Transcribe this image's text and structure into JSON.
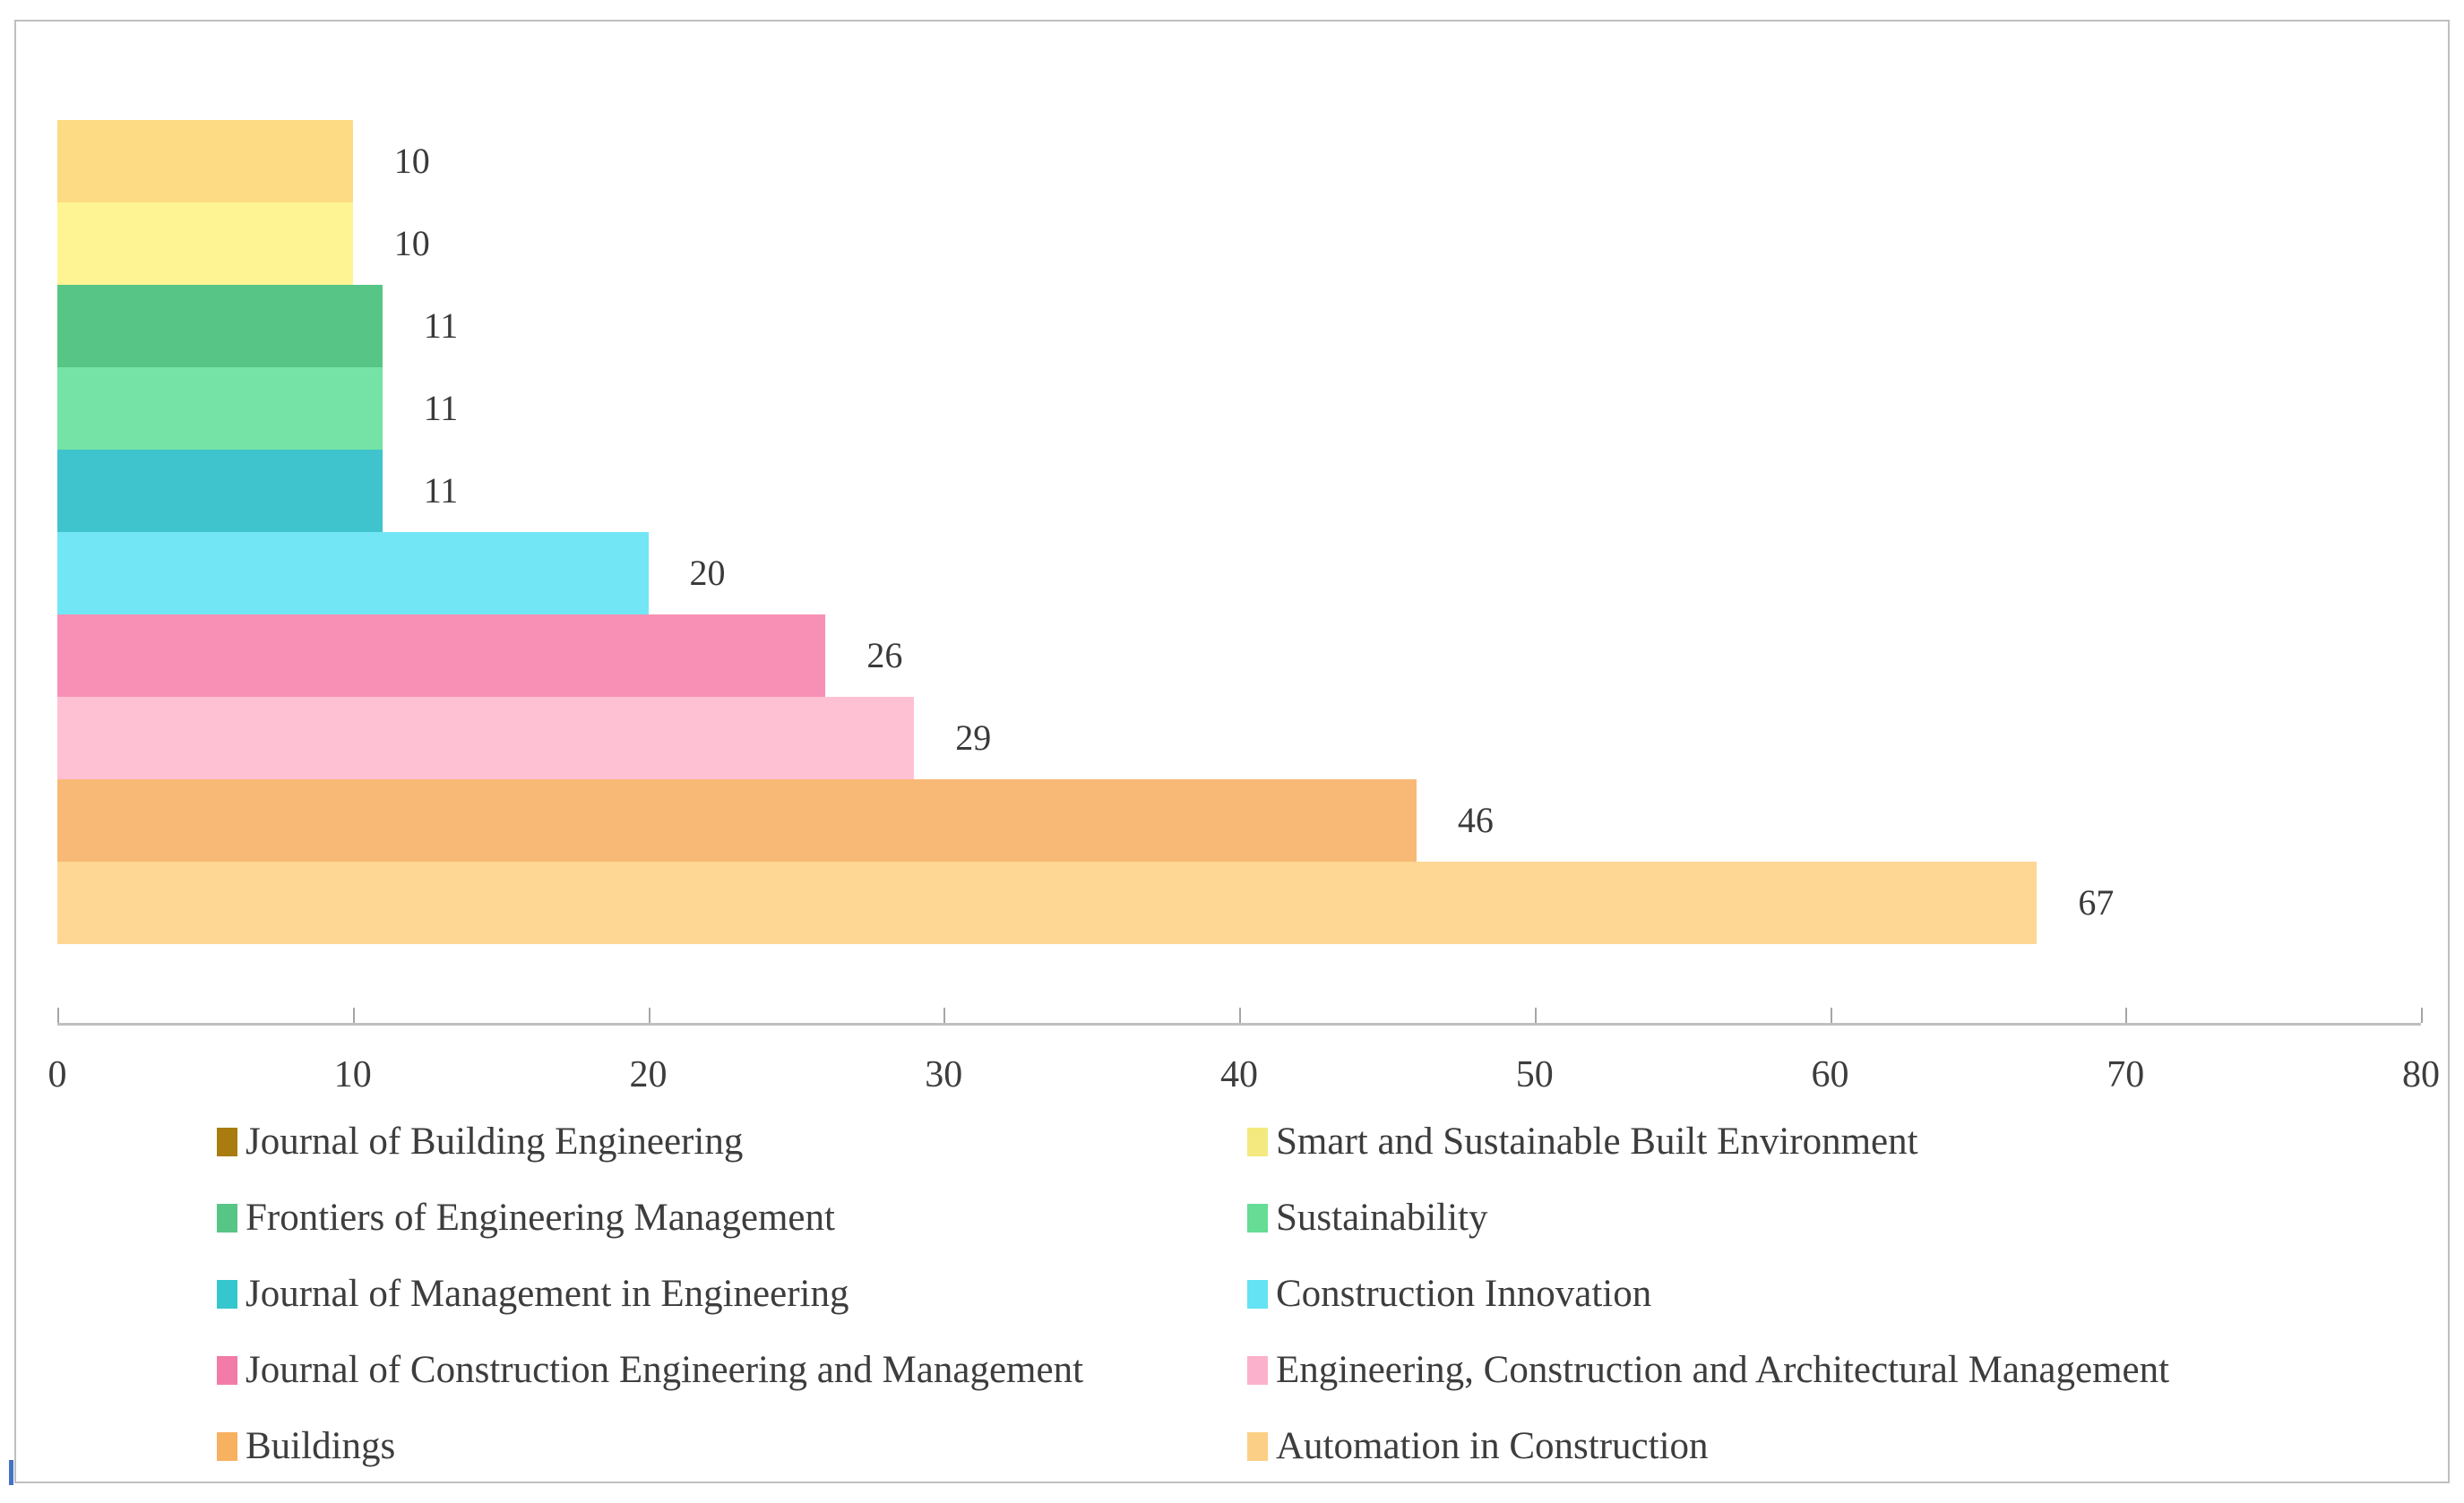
{
  "figure": {
    "background": "#FFFFFF",
    "border_color": "#BFBFBF"
  },
  "chart_data": {
    "type": "bar",
    "orientation": "horizontal",
    "title": "",
    "xlabel": "",
    "ylabel": "",
    "xlim": [
      0,
      80
    ],
    "xticks": [
      "0",
      "10",
      "20",
      "30",
      "40",
      "50",
      "60",
      "70",
      "80"
    ],
    "grid": false,
    "axis_color": "#BFBFBF",
    "tick_color": "#A6A6A6",
    "text_color": "#3D3D3D",
    "bars": [
      {
        "category": "Journal of Building Engineering",
        "value": 10,
        "label": "10",
        "color": "#FCDB84"
      },
      {
        "category": "Smart and Sustainable Built Environment",
        "value": 10,
        "label": "10",
        "color": "#FEF494"
      },
      {
        "category": "Frontiers of Engineering Management",
        "value": 11,
        "label": "11",
        "color": "#57C585"
      },
      {
        "category": "Sustainability",
        "value": 11,
        "label": "11",
        "color": "#74E3A5"
      },
      {
        "category": "Journal of Management in Engineering",
        "value": 11,
        "label": "11",
        "color": "#3FC3CD"
      },
      {
        "category": "Construction Innovation",
        "value": 20,
        "label": "20",
        "color": "#73E6F6"
      },
      {
        "category": "Journal of Construction Engineering and Management",
        "value": 26,
        "label": "26",
        "color": "#F890B6"
      },
      {
        "category": "Engineering, Construction and Architectural Management",
        "value": 29,
        "label": "29",
        "color": "#FEC1D3"
      },
      {
        "category": "Buildings",
        "value": 46,
        "label": "46",
        "color": "#F8B976"
      },
      {
        "category": "Automation in Construction",
        "value": 67,
        "label": "67",
        "color": "#FED794"
      }
    ],
    "legend_position": "bottom",
    "legend_columns": 2,
    "legend": [
      {
        "label": "Journal of Building Engineering",
        "swatch": "#A87C0E"
      },
      {
        "label": "Smart and Sustainable Built Environment",
        "swatch": "#F3E97E"
      },
      {
        "label": "Frontiers of Engineering Management",
        "swatch": "#57C585"
      },
      {
        "label": "Sustainability",
        "swatch": "#66DC95"
      },
      {
        "label": "Journal of Management in Engineering",
        "swatch": "#35C6CE"
      },
      {
        "label": "Construction Innovation",
        "swatch": "#63E3F3"
      },
      {
        "label": "Journal of Construction Engineering and Management",
        "swatch": "#F27BA7"
      },
      {
        "label": "Engineering, Construction and Architectural Management",
        "swatch": "#FBB1CB"
      },
      {
        "label": "Buildings",
        "swatch": "#F7B161"
      },
      {
        "label": "Automation in Construction",
        "swatch": "#FBCF85"
      }
    ]
  }
}
